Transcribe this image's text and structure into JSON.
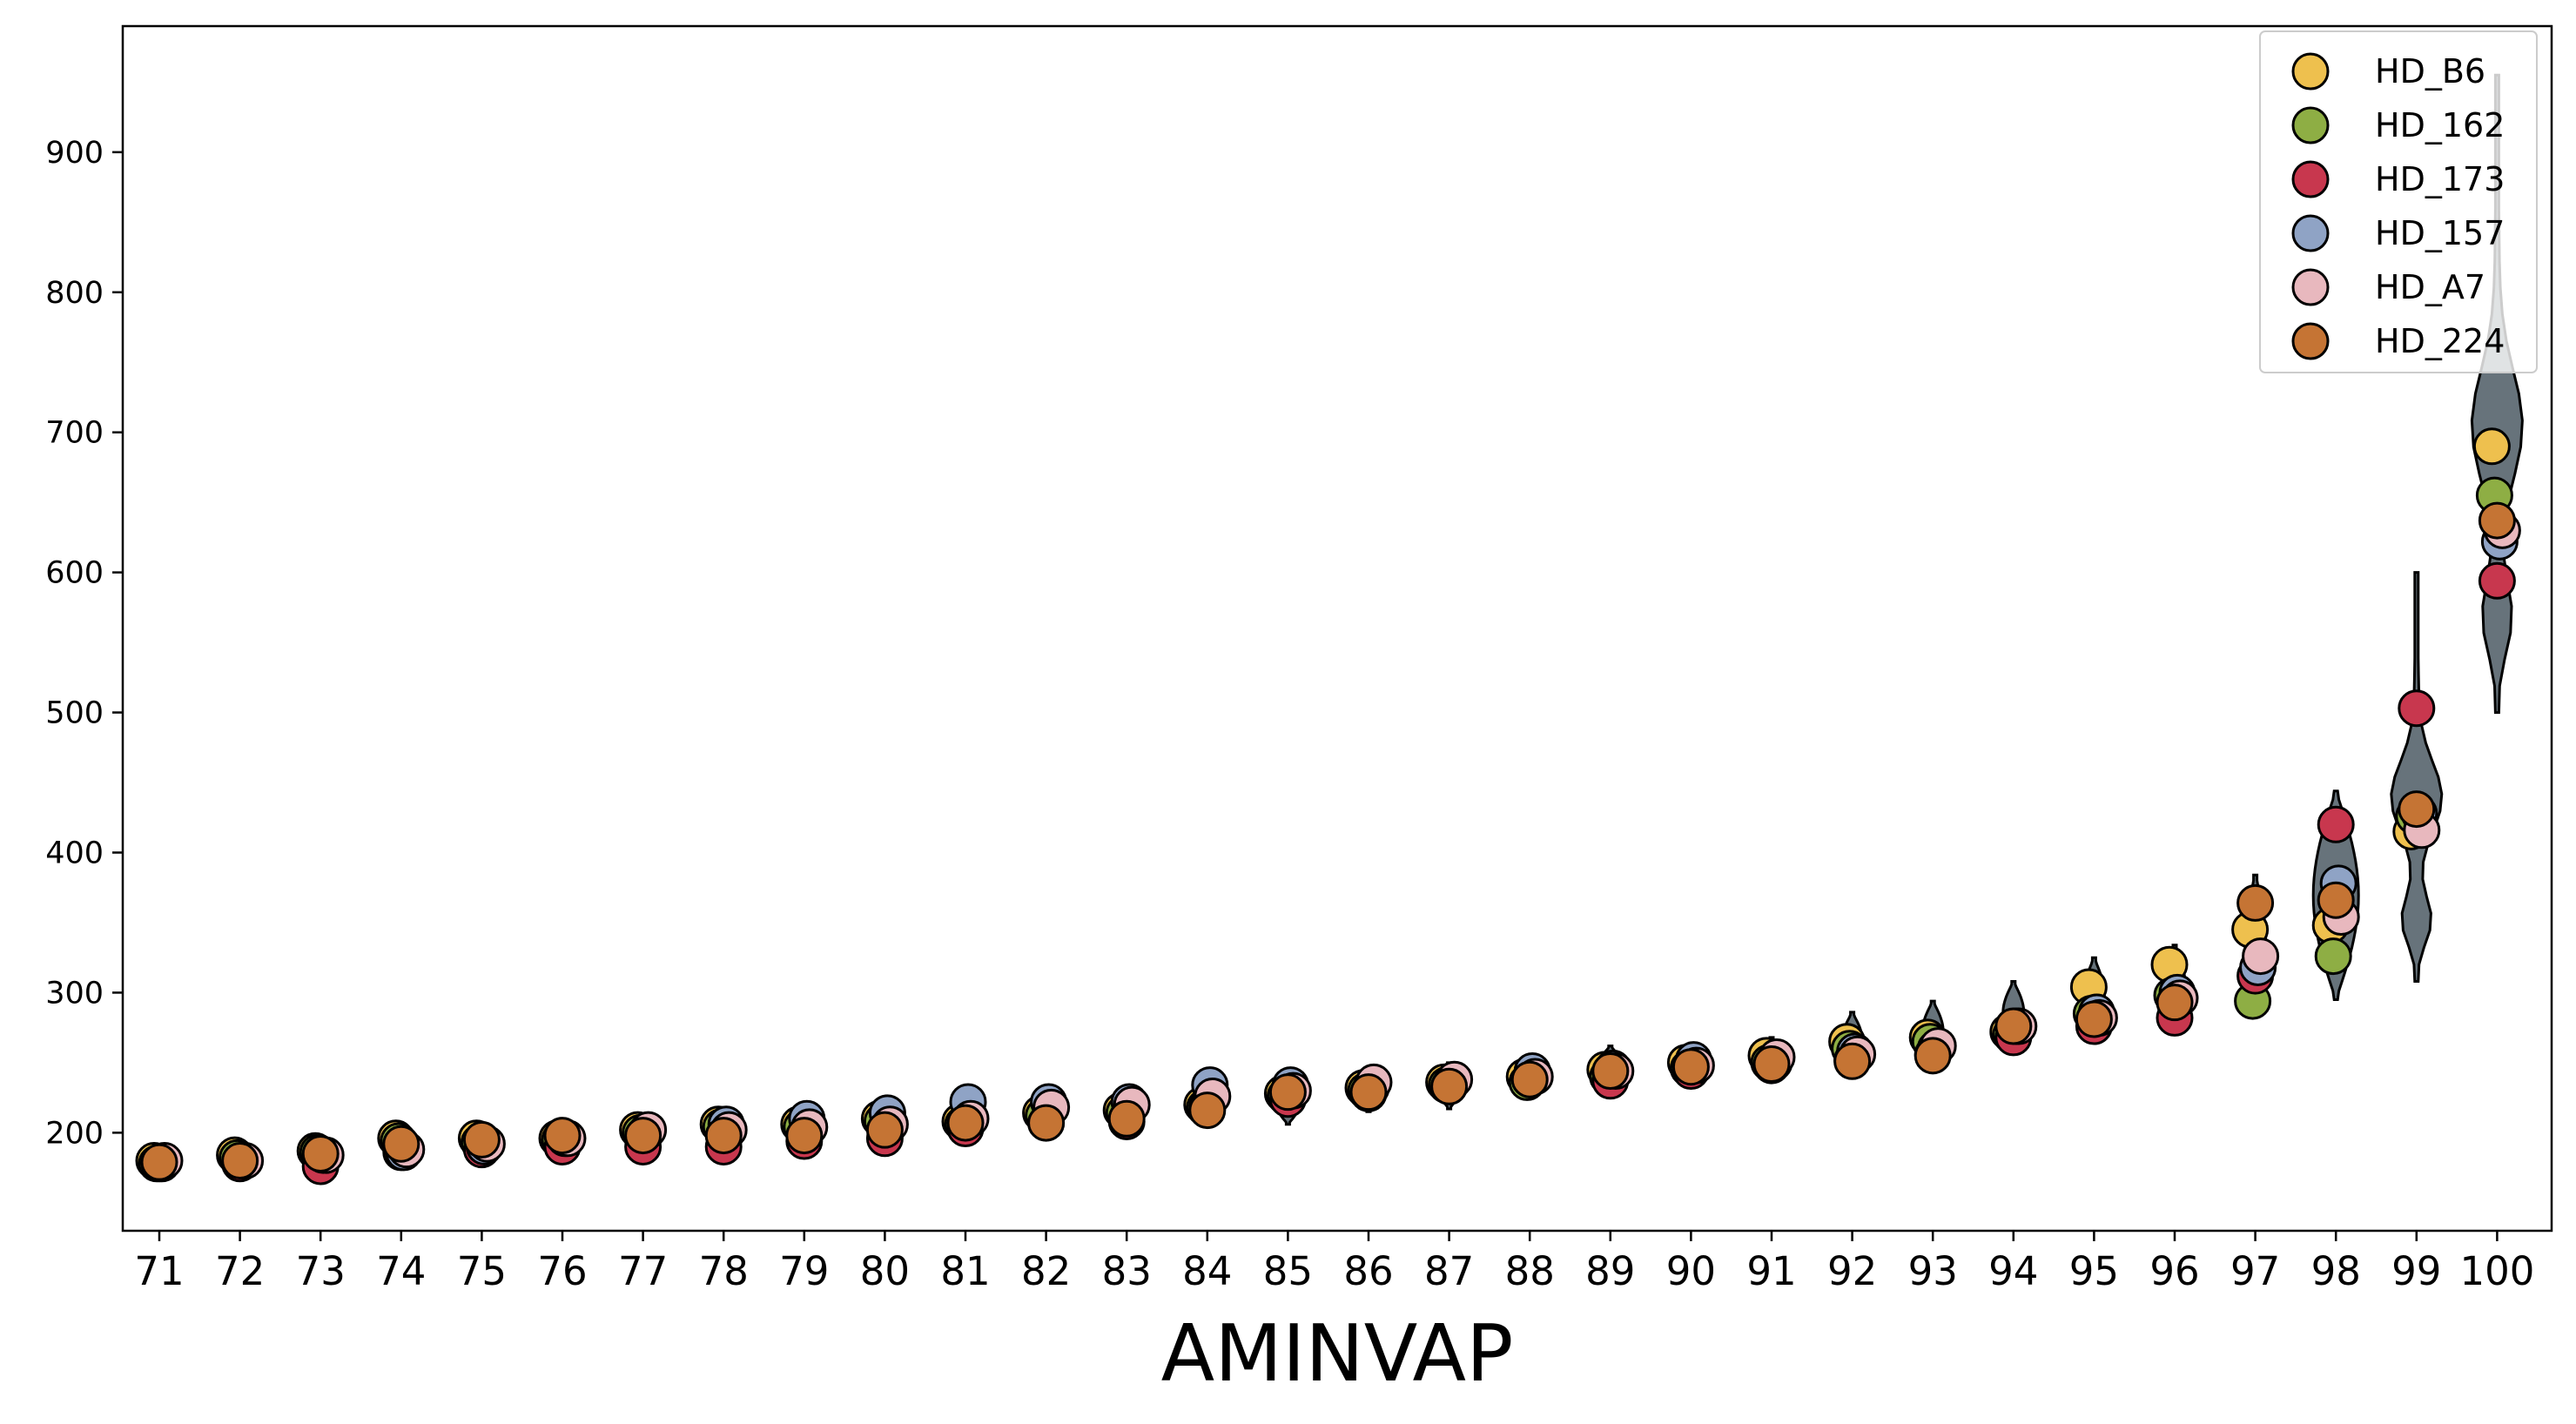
{
  "chart_data": {
    "type": "scatter",
    "title": "",
    "xlabel": "AMINVAP",
    "ylabel": "",
    "ylim": [
      130,
      990
    ],
    "grid": false,
    "legend_position": "top-right",
    "categories": [
      "71",
      "72",
      "73",
      "74",
      "75",
      "76",
      "77",
      "78",
      "79",
      "80",
      "81",
      "82",
      "83",
      "84",
      "85",
      "86",
      "87",
      "88",
      "89",
      "90",
      "91",
      "92",
      "93",
      "94",
      "95",
      "96",
      "97",
      "98",
      "99",
      "100"
    ],
    "yticks": [
      200,
      300,
      400,
      500,
      600,
      700,
      800,
      900
    ],
    "distribution": {
      "name": "violin",
      "color": "#5f6b74",
      "spread": [
        {
          "min": 175,
          "max": 185
        },
        {
          "min": 175,
          "max": 188
        },
        {
          "min": 175,
          "max": 190
        },
        {
          "min": 182,
          "max": 198
        },
        {
          "min": 183,
          "max": 200
        },
        {
          "min": 188,
          "max": 202
        },
        {
          "min": 188,
          "max": 208
        },
        {
          "min": 187,
          "max": 210
        },
        {
          "min": 192,
          "max": 213
        },
        {
          "min": 195,
          "max": 216
        },
        {
          "min": 200,
          "max": 225
        },
        {
          "min": 205,
          "max": 225
        },
        {
          "min": 205,
          "max": 225
        },
        {
          "min": 212,
          "max": 236
        },
        {
          "min": 206,
          "max": 238
        },
        {
          "min": 215,
          "max": 242
        },
        {
          "min": 217,
          "max": 250
        },
        {
          "min": 228,
          "max": 254
        },
        {
          "min": 232,
          "max": 262
        },
        {
          "min": 240,
          "max": 264
        },
        {
          "min": 243,
          "max": 268
        },
        {
          "min": 244,
          "max": 286
        },
        {
          "min": 250,
          "max": 294
        },
        {
          "min": 263,
          "max": 308
        },
        {
          "min": 270,
          "max": 325
        },
        {
          "min": 278,
          "max": 334
        },
        {
          "min": 290,
          "max": 384
        },
        {
          "min": 295,
          "max": 444
        },
        {
          "min": 308,
          "max": 600
        },
        {
          "min": 500,
          "max": 955
        }
      ]
    },
    "series": [
      {
        "name": "HD_B6",
        "color": "#eec04e",
        "values": [
          180,
          184,
          187,
          196,
          196,
          196,
          202,
          206,
          206,
          210,
          208,
          214,
          216,
          220,
          228,
          232,
          236,
          240,
          245,
          250,
          255,
          265,
          268,
          272,
          304,
          320,
          345,
          348,
          415,
          690
        ]
      },
      {
        "name": "HD_162",
        "color": "#8eae44",
        "values": [
          178,
          182,
          186,
          194,
          193,
          195,
          200,
          204,
          204,
          208,
          206,
          212,
          214,
          218,
          226,
          230,
          234,
          236,
          240,
          246,
          250,
          260,
          265,
          270,
          285,
          298,
          294,
          326,
          426,
          655
        ]
      },
      {
        "name": "HD_173",
        "color": "#c8374e",
        "values": [
          178,
          178,
          176,
          186,
          188,
          190,
          190,
          190,
          194,
          196,
          203,
          207,
          208,
          218,
          224,
          228,
          233,
          238,
          237,
          244,
          248,
          252,
          256,
          268,
          276,
          282,
          312,
          420,
          503,
          594
        ]
      },
      {
        "name": "HD_157",
        "color": "#8fa3c5",
        "values": [
          178,
          180,
          184,
          186,
          190,
          196,
          200,
          206,
          210,
          214,
          222,
          222,
          222,
          234,
          234,
          232,
          236,
          244,
          246,
          252,
          250,
          258,
          260,
          276,
          286,
          300,
          318,
          378,
          428,
          622
        ]
      },
      {
        "name": "HD_A7",
        "color": "#e8b8be",
        "values": [
          180,
          180,
          184,
          188,
          192,
          196,
          202,
          202,
          204,
          206,
          210,
          218,
          220,
          226,
          230,
          236,
          238,
          240,
          244,
          248,
          254,
          256,
          262,
          276,
          282,
          296,
          326,
          354,
          416,
          630
        ]
      },
      {
        "name": "HD_224",
        "color": "#c57434",
        "values": [
          179,
          180,
          185,
          192,
          195,
          198,
          198,
          198,
          198,
          202,
          207,
          207,
          210,
          216,
          229,
          229,
          233,
          238,
          244,
          247,
          249,
          251,
          255,
          276,
          281,
          293,
          364,
          366,
          431,
          637
        ]
      }
    ]
  }
}
